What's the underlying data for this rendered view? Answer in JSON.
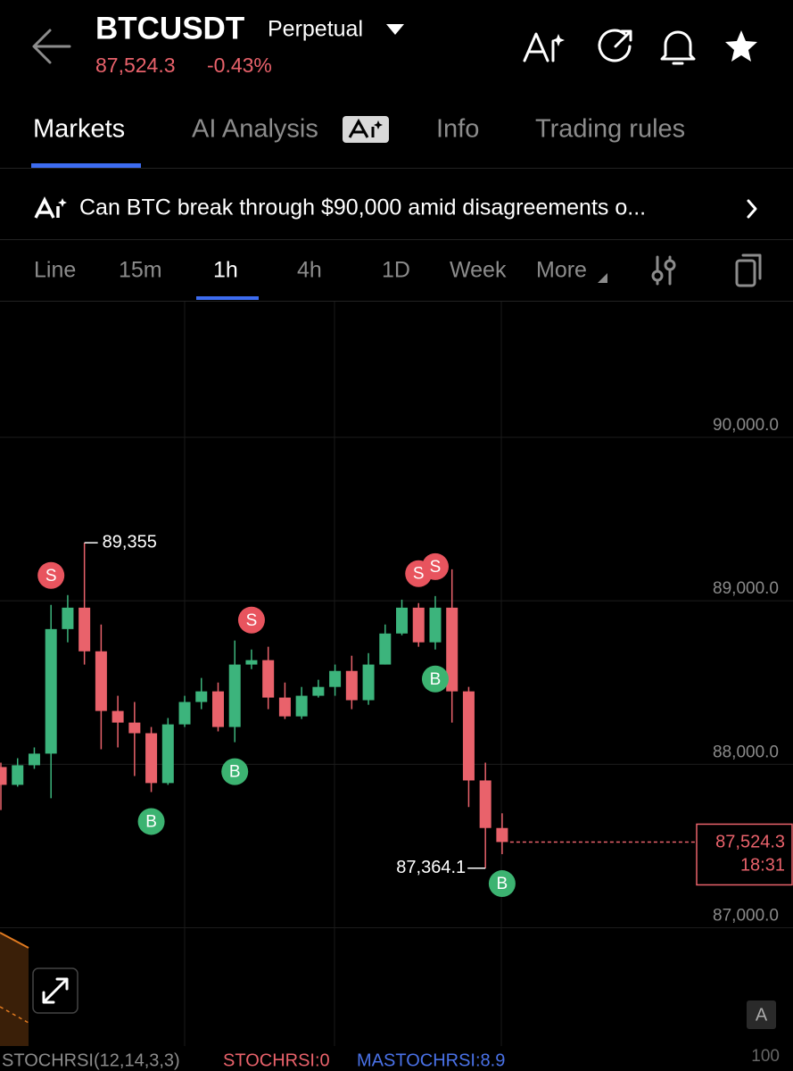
{
  "header": {
    "symbol": "BTCUSDT",
    "contract": "Perpetual",
    "price": "87,524.3",
    "change": "-0.43%"
  },
  "tabs": [
    "Markets",
    "AI Analysis",
    "Info",
    "Trading rules"
  ],
  "banner": "Can BTC break through $90,000 amid disagreements o...",
  "intervals": [
    "Line",
    "15m",
    "1h",
    "4h",
    "1D",
    "Week",
    "More"
  ],
  "chart_data": {
    "type": "candlestick",
    "categories": [
      null,
      null,
      null,
      null,
      null,
      null,
      null,
      null,
      null,
      null,
      null,
      null,
      null,
      null,
      null,
      null,
      null,
      null,
      null,
      null,
      null,
      null,
      null,
      null,
      null,
      null,
      null,
      null,
      null,
      null,
      null
    ],
    "open": [
      87983,
      87874,
      87994,
      88065,
      88827,
      88958,
      88691,
      88326,
      88255,
      88190,
      87885,
      88244,
      88381,
      88446,
      88228,
      88610,
      88637,
      88408,
      88293,
      88419,
      88473,
      88571,
      88392,
      88610,
      88800,
      88958,
      88746,
      88958,
      88446,
      87901,
      87610
    ],
    "high": [
      88010,
      88037,
      88103,
      88975,
      89035,
      89355,
      88855,
      88419,
      88381,
      88228,
      88283,
      88419,
      88528,
      88500,
      88757,
      88702,
      88719,
      88500,
      88473,
      88517,
      88610,
      88664,
      88680,
      88855,
      89007,
      88986,
      89029,
      89193,
      88473,
      88010,
      87700
    ],
    "low": [
      87720,
      87863,
      87972,
      87792,
      88746,
      88610,
      88092,
      88103,
      87928,
      87830,
      87874,
      88228,
      88337,
      88201,
      88135,
      88582,
      88337,
      88277,
      88277,
      88408,
      88419,
      88337,
      88364,
      88610,
      88789,
      88719,
      88702,
      88255,
      87738,
      87364.1,
      87450
    ],
    "close": [
      87874,
      87994,
      88065,
      88827,
      88958,
      88691,
      88326,
      88255,
      88190,
      87885,
      88244,
      88381,
      88446,
      88228,
      88610,
      88637,
      88408,
      88293,
      88419,
      88473,
      88571,
      88392,
      88610,
      88800,
      88958,
      88746,
      88958,
      88446,
      87901,
      87610,
      87524.3
    ],
    "up_color": "#3cb47c",
    "down_color": "#e9626b",
    "ylim": [
      86260,
      90830
    ],
    "yticks": [
      {
        "value": 87000,
        "label": "87,000.0"
      },
      {
        "value": 88000,
        "label": "88,000.0"
      },
      {
        "value": 89000,
        "label": "89,000.0"
      },
      {
        "value": 90000,
        "label": "90,000.0"
      }
    ],
    "grid": true,
    "high_label": {
      "candle": 5,
      "text": "89,355"
    },
    "low_label": {
      "candle": 29,
      "text": "87,364.1"
    },
    "signals": [
      {
        "candle": 3,
        "label": "S"
      },
      {
        "candle": 15,
        "label": "S"
      },
      {
        "candle": 25,
        "label": "S"
      },
      {
        "candle": 26,
        "label": "S"
      },
      {
        "candle": 9,
        "label": "B"
      },
      {
        "candle": 14,
        "label": "B"
      },
      {
        "candle": 26,
        "label": "B"
      },
      {
        "candle": 30,
        "label": "B"
      }
    ],
    "last_price_label": "87,524.3",
    "countdown": "18:31"
  },
  "indicator": {
    "name": "STOCHRSI(12,14,3,3)",
    "value": "STOCHRSI:0",
    "average": "MASTOCHRSI:8.9",
    "scale": "100"
  }
}
